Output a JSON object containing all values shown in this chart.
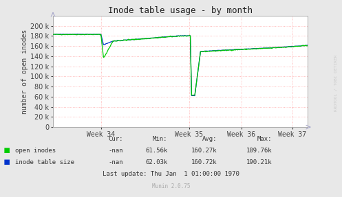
{
  "title": "Inode table usage - by month",
  "ylabel": "number of open inodes",
  "background_color": "#e8e8e8",
  "plot_bg_color": "#ffffff",
  "grid_color": "#ffaaaa",
  "ylim": [
    0,
    220000
  ],
  "yticks": [
    0,
    20000,
    40000,
    60000,
    80000,
    100000,
    120000,
    140000,
    160000,
    180000,
    200000
  ],
  "xtick_labels": [
    "Week 34",
    "Week 35",
    "Week 36",
    "Week 37"
  ],
  "line_green_color": "#00cc00",
  "line_blue_color": "#0033cc",
  "legend_labels": [
    "open inodes",
    "inode table size"
  ],
  "stats_headers": [
    "Cur:",
    "Min:",
    "Avg:",
    "Max:"
  ],
  "stats_row1": [
    "-nan",
    "61.56k",
    "160.27k",
    "189.76k"
  ],
  "stats_row2": [
    "-nan",
    "62.03k",
    "160.72k",
    "190.21k"
  ],
  "last_update": "Last update: Thu Jan  1 01:00:00 1970",
  "munin_label": "Munin 2.0.75",
  "watermark": "RRDTOOL / TOBI OETIKER"
}
